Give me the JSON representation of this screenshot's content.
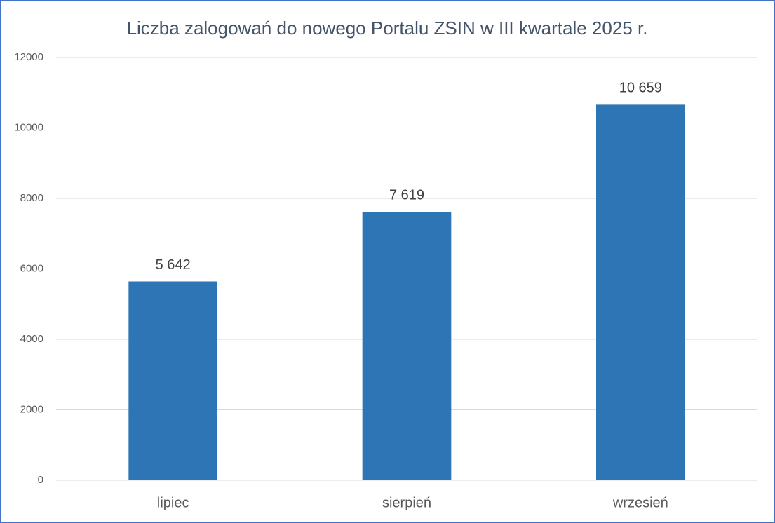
{
  "chart_data": {
    "type": "bar",
    "title": "Liczba zalogowań do nowego Portalu ZSIN w III kwartale 2025 r.",
    "categories": [
      "lipiec",
      "sierpień",
      "wrzesień"
    ],
    "values": [
      5642,
      7619,
      10659
    ],
    "value_labels": [
      "5 642",
      "7 619",
      "10 659"
    ],
    "color": "#2e75b6",
    "ylim": [
      0,
      12000
    ],
    "yticks": [
      0,
      2000,
      4000,
      6000,
      8000,
      10000,
      12000
    ],
    "grid": true
  }
}
